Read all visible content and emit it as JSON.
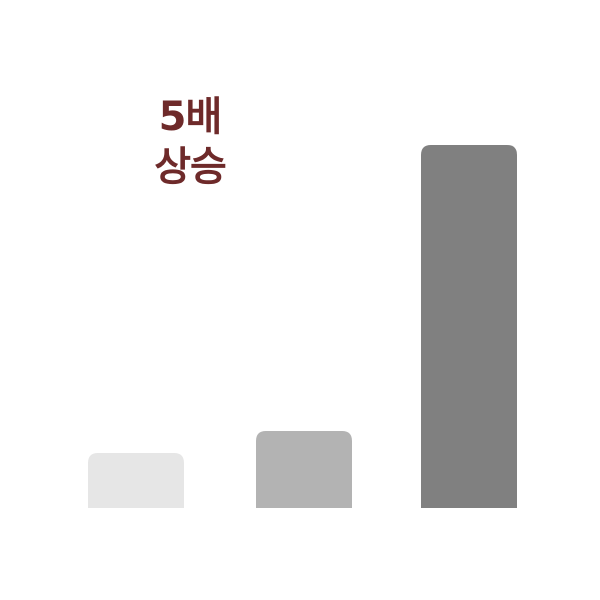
{
  "chart_data": {
    "type": "bar",
    "categories": [
      "",
      "",
      ""
    ],
    "values": [
      1,
      1.4,
      6.6
    ],
    "ylim": [
      0,
      7
    ],
    "grid": false,
    "legend": "none",
    "colors": [
      "#e6e6e6",
      "#b3b3b3",
      "#808080"
    ],
    "annotation": {
      "line1": "5배",
      "line2": "상승",
      "color": "#6e2a2a"
    }
  }
}
